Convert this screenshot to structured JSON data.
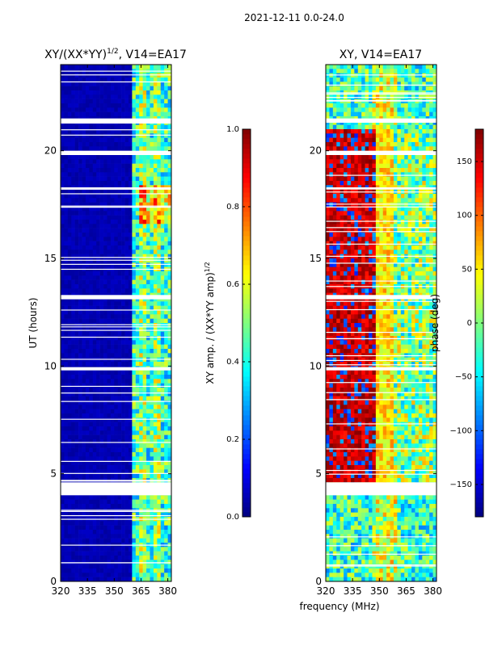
{
  "figure": {
    "suptitle": "2021-12-11 0.0-24.0",
    "xlabel": "frequency (MHz)"
  },
  "colors": {
    "jet": [
      "#00007f",
      "#0000ff",
      "#007fff",
      "#00ffff",
      "#7fff7f",
      "#ffff00",
      "#ff7f00",
      "#ff0000",
      "#7f0000"
    ]
  },
  "chart_data": [
    {
      "type": "heatmap",
      "title_base": "XY/(XX*YY)",
      "title_exp": "1/2",
      "title_tail": ", V14=EA17",
      "x": {
        "min": 320,
        "max": 382,
        "ticks": [
          320,
          335,
          350,
          365,
          380
        ]
      },
      "y": {
        "label": "UT (hours)",
        "min": 0,
        "max": 24,
        "ticks": [
          0,
          5,
          10,
          15,
          20
        ]
      },
      "colorbar": {
        "min": 0,
        "max": 1,
        "ticks": [
          0.0,
          0.2,
          0.4,
          0.6,
          0.8,
          1.0
        ],
        "tick_labels": [
          "0.0",
          "0.2",
          "0.4",
          "0.6",
          "0.8",
          "1.0"
        ],
        "label_base": "XY amp. / (XX*YY amp)",
        "label_exp": "1/2"
      },
      "pattern": "low amplitude (~0.05) below 360 MHz; speckled 0.3-0.8 above 360 MHz, peaking near 366-380 MHz around 17-18 UT",
      "gaps_hours": [
        [
          4.0,
          4.6
        ],
        [
          13.1,
          13.3
        ],
        [
          21.3,
          21.5
        ],
        [
          19.8,
          20.0
        ],
        [
          18.2,
          18.3
        ],
        [
          9.8,
          9.95
        ]
      ]
    },
    {
      "type": "heatmap",
      "title_base": "XY",
      "title_tail": ", V14=EA17",
      "x": {
        "min": 320,
        "max": 382,
        "ticks": [
          320,
          335,
          350,
          365,
          380
        ]
      },
      "y": {
        "label": "",
        "min": 0,
        "max": 24,
        "ticks": [
          0,
          5,
          10,
          15,
          20
        ]
      },
      "colorbar": {
        "min": -180,
        "max": 180,
        "ticks": [
          -150,
          -100,
          -50,
          0,
          50,
          100,
          150
        ],
        "tick_labels": [
          "−150",
          "−100",
          "−50",
          "0",
          "50",
          "100",
          "150"
        ],
        "label": "phase (deg)"
      },
      "pattern": "phase bands; red/orange (≈+150 to -180) between 4.5 and 21 UT for 320-350 MHz, cyan/yellow elsewhere, blue/cyan before 4 UT and after 21 UT",
      "gaps_hours": [
        [
          4.0,
          4.6
        ],
        [
          13.1,
          13.3
        ],
        [
          21.3,
          21.5
        ],
        [
          19.8,
          20.0
        ],
        [
          18.2,
          18.3
        ],
        [
          9.8,
          9.95
        ]
      ]
    }
  ]
}
